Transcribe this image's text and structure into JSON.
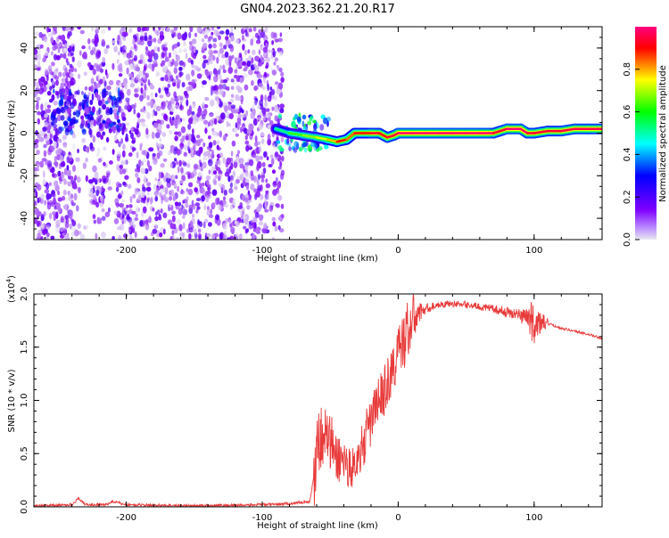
{
  "figure_title": "GN04.2023.362.21.20.R17",
  "colors": {
    "snr_line": "#e83a3a",
    "axis": "#000000",
    "background": "#ffffff"
  },
  "chart_data": [
    {
      "type": "heatmap",
      "title": "GN04.2023.362.21.20.R17",
      "xlabel": "Height of straight line (km)",
      "ylabel": "Frequency (Hz)",
      "xlim": [
        -268,
        150
      ],
      "ylim": [
        -50,
        50
      ],
      "x_ticks": [
        "-200",
        "-100",
        "0",
        "100"
      ],
      "y_ticks": [
        "-40",
        "-20",
        "0",
        "20",
        "40"
      ],
      "grid": false,
      "colorbar": {
        "label": "Normalized spectral amplitude",
        "range": [
          0.0,
          1.0
        ],
        "ticks": [
          "0.0",
          "0.2",
          "0.4",
          "0.6",
          "0.8"
        ],
        "colormap": [
          "#e8e8f0",
          "#7f00ff",
          "#0000ff",
          "#00ffff",
          "#00ff00",
          "#ffff00",
          "#ff0000",
          "#ff00aa"
        ]
      },
      "regions": [
        {
          "x": [
            -268,
            -85
          ],
          "freq": [
            -50,
            50
          ],
          "pattern": "broadband noise speckle",
          "amplitude": [
            0.0,
            0.2
          ]
        },
        {
          "x": [
            -255,
            -200
          ],
          "freq": [
            0,
            20
          ],
          "pattern": "noise cluster",
          "amplitude": [
            0.1,
            0.35
          ]
        },
        {
          "x": [
            -90,
            -50
          ],
          "freq": [
            -8,
            8
          ],
          "pattern": "emerging signal",
          "amplitude": [
            0.2,
            0.6
          ]
        }
      ],
      "ridge": {
        "x": [
          -90,
          -80,
          -70,
          -60,
          -52,
          -45,
          -38,
          -32,
          -26,
          -20,
          -14,
          -8,
          -3,
          0,
          10,
          20,
          30,
          40,
          50,
          60,
          70,
          75,
          80,
          90,
          95,
          100,
          110,
          120,
          130,
          140,
          150
        ],
        "freq": [
          2,
          0,
          -1,
          -2,
          -3,
          -4,
          -3,
          0,
          0,
          0,
          0,
          -2,
          -1,
          0,
          0,
          0,
          0,
          0,
          0,
          0,
          0,
          1,
          2,
          2,
          0,
          0,
          1,
          1,
          2,
          2,
          2
        ],
        "amplitude": [
          0.5,
          0.6,
          0.65,
          0.7,
          0.75,
          0.85,
          0.8,
          0.85,
          0.85,
          0.9,
          0.88,
          0.9,
          0.9,
          0.95,
          0.95,
          0.95,
          0.95,
          0.95,
          0.95,
          0.95,
          0.9,
          0.9,
          0.95,
          0.95,
          0.9,
          0.9,
          0.9,
          0.92,
          0.92,
          0.92,
          0.92
        ]
      }
    },
    {
      "type": "line",
      "xlabel": "Height of straight line (km)",
      "ylabel": "SNR (10 * v/v)",
      "y_scale_label": "(x10",
      "y_scale_exp": "4",
      "y_scale_close": ")",
      "xlim": [
        -268,
        150
      ],
      "ylim": [
        0.0,
        2.0
      ],
      "x_ticks": [
        "-200",
        "-100",
        "0",
        "100"
      ],
      "y_ticks": [
        "0.0",
        "0.5",
        "1.0",
        "1.5",
        "2.0"
      ],
      "grid": false,
      "series": [
        {
          "x": [
            -268,
            -240,
            -235,
            -230,
            -215,
            -210,
            -200,
            -150,
            -100,
            -80,
            -65,
            -62,
            -60,
            -55,
            -50,
            -45,
            -40,
            -35,
            -30,
            -25,
            -20,
            -15,
            -10,
            -5,
            0,
            5,
            10,
            15,
            20,
            30,
            40,
            50,
            60,
            70,
            80,
            90,
            95,
            100,
            102,
            110,
            120,
            130,
            140,
            150
          ],
          "y": [
            0.01,
            0.02,
            0.08,
            0.02,
            0.02,
            0.05,
            0.02,
            0.01,
            0.02,
            0.03,
            0.05,
            0.3,
            0.6,
            0.7,
            0.6,
            0.45,
            0.45,
            0.35,
            0.45,
            0.6,
            0.8,
            1.0,
            1.1,
            1.25,
            1.45,
            1.6,
            1.75,
            1.82,
            1.86,
            1.9,
            1.91,
            1.9,
            1.88,
            1.86,
            1.83,
            1.8,
            1.78,
            1.72,
            1.72,
            1.72,
            1.68,
            1.65,
            1.62,
            1.58
          ],
          "band_x": [
            -62,
            -55,
            -50,
            -45,
            -40,
            -35,
            -30,
            -25,
            -20,
            -15,
            -10,
            -5,
            0,
            5,
            10,
            15,
            20,
            30,
            60,
            90,
            95,
            100,
            102,
            110
          ],
          "band_y": [
            0.4,
            0.3,
            0.3,
            0.25,
            0.2,
            0.2,
            0.15,
            0.25,
            0.25,
            0.2,
            0.25,
            0.25,
            0.25,
            0.3,
            0.3,
            0.1,
            0.05,
            0.03,
            0.03,
            0.06,
            0.15,
            0.2,
            0.15,
            0.05
          ]
        }
      ]
    }
  ]
}
